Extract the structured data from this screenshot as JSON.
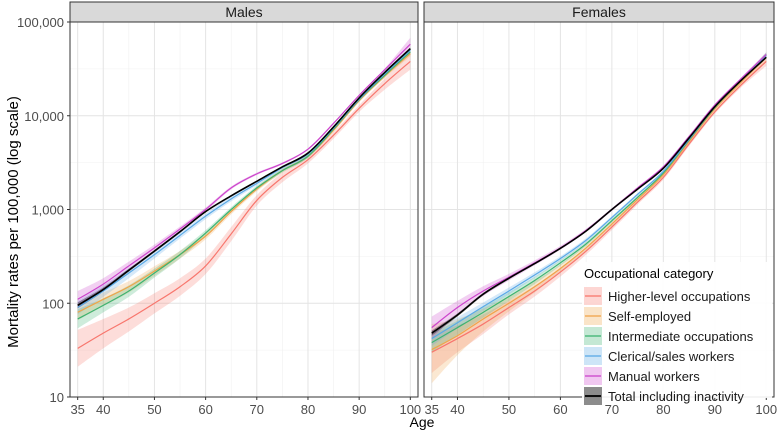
{
  "chart_data": {
    "type": "line",
    "ylabel": "Mortality rates per 100,000 (log scale)",
    "xlabel": "Age",
    "y_scale": "log10",
    "ylim": [
      10,
      100000
    ],
    "xlim": [
      33.5,
      101.5
    ],
    "x_ticks": [
      35,
      40,
      50,
      60,
      70,
      80,
      90,
      100
    ],
    "y_ticks": [
      10,
      100,
      1000,
      10000,
      100000
    ],
    "y_tick_labels": [
      "10",
      "100",
      "1,000",
      "10,000",
      "100,000"
    ],
    "legend": {
      "title": "Occupational category",
      "placement": "inside-bottom-right of Females panel"
    },
    "series_styles": [
      {
        "name": "Higher-level occupations",
        "color": "#f8766d"
      },
      {
        "name": "Self-employed",
        "color": "#f0a44a"
      },
      {
        "name": "Intermediate occupations",
        "color": "#3cb371"
      },
      {
        "name": "Clerical/sales workers",
        "color": "#5aa9e6"
      },
      {
        "name": "Manual workers",
        "color": "#cc44cc"
      },
      {
        "name": "Total including inactivity",
        "color": "#000000"
      }
    ],
    "panels": [
      {
        "title": "Males",
        "series": [
          {
            "name": "Higher-level occupations",
            "x": [
              35,
              40,
              45,
              50,
              55,
              60,
              65,
              70,
              75,
              80,
              85,
              90,
              95,
              100
            ],
            "y": [
              33,
              48,
              68,
              100,
              150,
              250,
              550,
              1250,
              2200,
              3400,
              6200,
              12000,
              22000,
              38000
            ],
            "low": [
              21,
              33,
              50,
              78,
              120,
              205,
              460,
              1100,
              1950,
              3100,
              5700,
              11000,
              19000,
              31000
            ],
            "high": [
              52,
              68,
              90,
              128,
              185,
              300,
              650,
              1420,
              2480,
              3700,
              6700,
              13000,
              25000,
              47000
            ]
          },
          {
            "name": "Self-employed",
            "x": [
              35,
              40,
              45,
              50,
              55,
              60,
              65,
              70,
              75,
              80,
              85,
              90,
              95,
              100
            ],
            "y": [
              80,
              110,
              150,
              220,
              330,
              520,
              950,
              1650,
              2600,
              3700,
              7000,
              14500,
              26500,
              46000
            ],
            "low": [
              66,
              93,
              130,
              195,
              300,
              480,
              890,
              1560,
              2480,
              3550,
              6700,
              13900,
              25300,
              43000
            ],
            "high": [
              96,
              130,
              172,
              248,
              362,
              565,
              1010,
              1740,
              2720,
              3850,
              7300,
              15100,
              27800,
              49000
            ]
          },
          {
            "name": "Intermediate occupations",
            "x": [
              35,
              40,
              45,
              50,
              55,
              60,
              65,
              70,
              75,
              80,
              85,
              90,
              95,
              100
            ],
            "y": [
              68,
              95,
              135,
              210,
              330,
              560,
              1000,
              1700,
              2600,
              3700,
              7200,
              14800,
              27000,
              48000
            ],
            "low": [
              54,
              80,
              117,
              188,
              300,
              520,
              940,
              1610,
              2480,
              3550,
              6900,
              14200,
              25700,
              45000
            ],
            "high": [
              86,
              113,
              155,
              234,
              362,
              602,
              1060,
              1790,
              2720,
              3850,
              7500,
              15400,
              28300,
              51000
            ]
          },
          {
            "name": "Clerical/sales workers",
            "x": [
              35,
              40,
              45,
              50,
              55,
              60,
              65,
              70,
              75,
              80,
              85,
              90,
              95,
              100
            ],
            "y": [
              90,
              135,
              210,
              330,
              530,
              850,
              1300,
              1900,
              2800,
              3900,
              7400,
              15000,
              28000,
              50000
            ],
            "low": [
              76,
              117,
              185,
              300,
              490,
              790,
              1220,
              1810,
              2680,
              3750,
              7100,
              14400,
              26700,
              47000
            ],
            "high": [
              106,
              155,
              237,
              362,
              572,
              910,
              1380,
              1990,
              2920,
              4050,
              7700,
              15600,
              29300,
              53000
            ]
          },
          {
            "name": "Manual workers",
            "x": [
              35,
              40,
              45,
              50,
              55,
              60,
              65,
              70,
              75,
              80,
              85,
              90,
              95,
              100
            ],
            "y": [
              110,
              160,
              250,
              390,
              620,
              1000,
              1700,
              2400,
              3100,
              4400,
              8300,
              16500,
              31000,
              58000
            ],
            "low": [
              90,
              138,
              225,
              360,
              585,
              950,
              1640,
              2330,
              3020,
              4300,
              8100,
              16100,
              30000,
              54000
            ],
            "high": [
              135,
              185,
              278,
              422,
              658,
              1050,
              1760,
              2470,
              3180,
              4500,
              8500,
              16900,
              32000,
              68000
            ]
          },
          {
            "name": "Total including inactivity",
            "x": [
              35,
              40,
              45,
              50,
              55,
              60,
              65,
              70,
              75,
              80,
              85,
              90,
              95,
              100
            ],
            "y": [
              95,
              140,
              225,
              360,
              580,
              950,
              1400,
              2000,
              2850,
              4000,
              7600,
              15500,
              29000,
              52000
            ],
            "low": [
              88,
              133,
              217,
              350,
              568,
              935,
              1385,
              1985,
              2830,
              3970,
              7550,
              15400,
              28700,
              50500
            ],
            "high": [
              102,
              147,
              233,
              370,
              592,
              965,
              1415,
              2015,
              2870,
              4030,
              7650,
              15600,
              29300,
              53500
            ]
          }
        ]
      },
      {
        "title": "Females",
        "series": [
          {
            "name": "Higher-level occupations",
            "x": [
              35,
              40,
              45,
              50,
              55,
              60,
              65,
              70,
              75,
              80,
              85,
              90,
              95,
              100
            ],
            "y": [
              30,
              42,
              60,
              90,
              135,
              215,
              360,
              650,
              1200,
              2200,
              5000,
              11000,
              21000,
              38000
            ],
            "low": [
              18,
              30,
              47,
              76,
              118,
              193,
              330,
              605,
              1130,
              2080,
              4750,
              10500,
              19800,
              34000
            ],
            "high": [
              48,
              58,
              76,
              106,
              154,
              238,
              392,
              697,
              1270,
              2320,
              5250,
              11500,
              22300,
              42000
            ]
          },
          {
            "name": "Self-employed",
            "x": [
              35,
              40,
              45,
              50,
              55,
              60,
              65,
              70,
              75,
              80,
              85,
              90,
              95,
              100
            ],
            "y": [
              32,
              45,
              68,
              100,
              150,
              235,
              390,
              700,
              1280,
              2350,
              5300,
              11800,
              22500,
              42000
            ],
            "low": [
              14,
              28,
              50,
              82,
              130,
              212,
              360,
              655,
              1210,
              2230,
              5050,
              11300,
              21300,
              38000
            ],
            "high": [
              60,
              68,
              88,
              120,
              172,
              260,
              422,
              747,
              1350,
              2470,
              5550,
              12300,
              23700,
              46000
            ]
          },
          {
            "name": "Intermediate occupations",
            "x": [
              35,
              40,
              45,
              50,
              55,
              60,
              65,
              70,
              75,
              80,
              85,
              90,
              95,
              100
            ],
            "y": [
              38,
              55,
              80,
              118,
              175,
              270,
              430,
              760,
              1350,
              2450,
              5500,
              12200,
              23500,
              45000
            ],
            "low": [
              30,
              46,
              70,
              106,
              160,
              252,
              408,
              728,
              1300,
              2370,
              5330,
              11850,
              22700,
              42500
            ],
            "high": [
              48,
              65,
              91,
              131,
              191,
              289,
              453,
              793,
              1400,
              2530,
              5670,
              12550,
              24300,
              47500
            ]
          },
          {
            "name": "Clerical/sales workers",
            "x": [
              35,
              40,
              45,
              50,
              55,
              60,
              65,
              70,
              75,
              80,
              85,
              90,
              95,
              100
            ],
            "y": [
              42,
              62,
              92,
              135,
              200,
              300,
              470,
              820,
              1450,
              2550,
              5600,
              12400,
              23500,
              44000
            ],
            "low": [
              35,
              54,
              83,
              124,
              187,
              284,
              448,
              790,
              1400,
              2470,
              5430,
              12050,
              22700,
              41500
            ],
            "high": [
              50,
              71,
              102,
              147,
              214,
              317,
              493,
              851,
              1500,
              2630,
              5770,
              12750,
              24300,
              46500
            ]
          },
          {
            "name": "Manual workers",
            "x": [
              35,
              40,
              45,
              50,
              55,
              60,
              65,
              70,
              75,
              80,
              85,
              90,
              95,
              100
            ],
            "y": [
              55,
              90,
              135,
              190,
              270,
              390,
              600,
              1000,
              1700,
              2850,
              6000,
              13000,
              24500,
              45000
            ],
            "low": [
              42,
              76,
              120,
              175,
              254,
              372,
              578,
              968,
              1650,
              2770,
              5830,
              12650,
              23700,
              42500
            ],
            "high": [
              72,
              106,
              152,
              206,
              287,
              409,
              623,
              1033,
              1750,
              2930,
              6170,
              13350,
              25300,
              47500
            ]
          },
          {
            "name": "Total including inactivity",
            "x": [
              35,
              40,
              45,
              50,
              55,
              60,
              65,
              70,
              75,
              80,
              85,
              90,
              95,
              100
            ],
            "y": [
              48,
              75,
              125,
              185,
              265,
              385,
              590,
              1000,
              1650,
              2750,
              5800,
              12500,
              23500,
              42000
            ],
            "low": [
              45,
              72,
              121,
              180,
              260,
              379,
              583,
              990,
              1635,
              2730,
              5760,
              12420,
              23300,
              41500
            ],
            "high": [
              51,
              78,
              129,
              190,
              270,
              391,
              597,
              1010,
              1665,
              2770,
              5840,
              12580,
              23700,
              42500
            ]
          }
        ]
      }
    ]
  }
}
